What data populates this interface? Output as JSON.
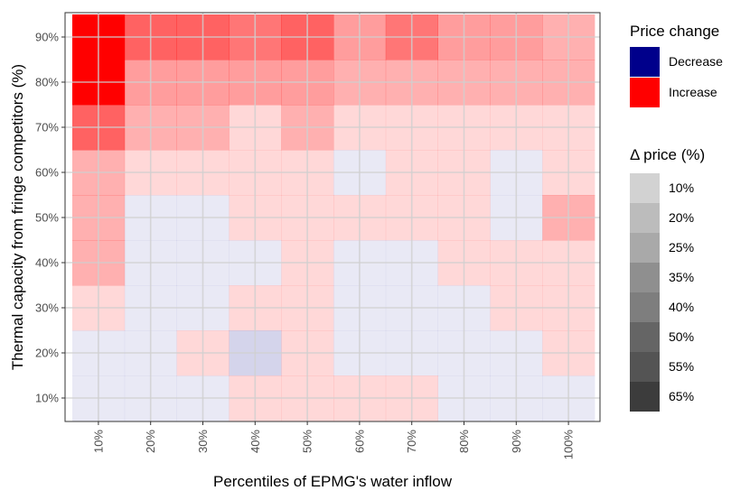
{
  "chart_data": {
    "type": "heatmap",
    "xlabel": "Percentiles of EPMG's water inflow",
    "ylabel": "Thermal capacity from fringe competitors (%)",
    "x_categories": [
      "10%",
      "20%",
      "30%",
      "40%",
      "50%",
      "60%",
      "70%",
      "80%",
      "90%",
      "100%"
    ],
    "y_categories": [
      "10%",
      "20%",
      "30%",
      "40%",
      "50%",
      "60%",
      "70%",
      "80%",
      "90%"
    ],
    "legend_direction": {
      "title": "Price change",
      "entries": [
        {
          "label": "Decrease",
          "color": "#00008B"
        },
        {
          "label": "Increase",
          "color": "#FF0000"
        }
      ]
    },
    "legend_magnitude": {
      "title": "Δ price (%)",
      "entries": [
        "10%",
        "20%",
        "25%",
        "35%",
        "40%",
        "50%",
        "55%",
        "65%"
      ]
    },
    "grid": true,
    "legend_position": "right",
    "colors": {
      "decrease": "#00008B",
      "increase": "#FF0000"
    },
    "cells": [
      {
        "x": "10%",
        "y": "90%",
        "dir": "Increase",
        "dp": 65
      },
      {
        "x": "20%",
        "y": "90%",
        "dir": "Increase",
        "dp": 40
      },
      {
        "x": "30%",
        "y": "90%",
        "dir": "Increase",
        "dp": 40
      },
      {
        "x": "40%",
        "y": "90%",
        "dir": "Increase",
        "dp": 35
      },
      {
        "x": "50%",
        "y": "90%",
        "dir": "Increase",
        "dp": 40
      },
      {
        "x": "60%",
        "y": "90%",
        "dir": "Increase",
        "dp": 25
      },
      {
        "x": "70%",
        "y": "90%",
        "dir": "Increase",
        "dp": 35
      },
      {
        "x": "80%",
        "y": "90%",
        "dir": "Increase",
        "dp": 25
      },
      {
        "x": "90%",
        "y": "90%",
        "dir": "Increase",
        "dp": 25
      },
      {
        "x": "100%",
        "y": "90%",
        "dir": "Increase",
        "dp": 20
      },
      {
        "x": "10%",
        "y": "80%",
        "dir": "Increase",
        "dp": 65
      },
      {
        "x": "20%",
        "y": "80%",
        "dir": "Increase",
        "dp": 25
      },
      {
        "x": "30%",
        "y": "80%",
        "dir": "Increase",
        "dp": 25
      },
      {
        "x": "40%",
        "y": "80%",
        "dir": "Increase",
        "dp": 25
      },
      {
        "x": "50%",
        "y": "80%",
        "dir": "Increase",
        "dp": 25
      },
      {
        "x": "60%",
        "y": "80%",
        "dir": "Increase",
        "dp": 20
      },
      {
        "x": "70%",
        "y": "80%",
        "dir": "Increase",
        "dp": 20
      },
      {
        "x": "80%",
        "y": "80%",
        "dir": "Increase",
        "dp": 20
      },
      {
        "x": "90%",
        "y": "80%",
        "dir": "Increase",
        "dp": 20
      },
      {
        "x": "100%",
        "y": "80%",
        "dir": "Increase",
        "dp": 20
      },
      {
        "x": "10%",
        "y": "70%",
        "dir": "Increase",
        "dp": 40
      },
      {
        "x": "20%",
        "y": "70%",
        "dir": "Increase",
        "dp": 20
      },
      {
        "x": "30%",
        "y": "70%",
        "dir": "Increase",
        "dp": 20
      },
      {
        "x": "40%",
        "y": "70%",
        "dir": "Increase",
        "dp": 10
      },
      {
        "x": "50%",
        "y": "70%",
        "dir": "Increase",
        "dp": 20
      },
      {
        "x": "60%",
        "y": "70%",
        "dir": "Increase",
        "dp": 10
      },
      {
        "x": "70%",
        "y": "70%",
        "dir": "Increase",
        "dp": 10
      },
      {
        "x": "80%",
        "y": "70%",
        "dir": "Increase",
        "dp": 10
      },
      {
        "x": "90%",
        "y": "70%",
        "dir": "Increase",
        "dp": 10
      },
      {
        "x": "100%",
        "y": "70%",
        "dir": "Increase",
        "dp": 10
      },
      {
        "x": "10%",
        "y": "60%",
        "dir": "Increase",
        "dp": 20
      },
      {
        "x": "20%",
        "y": "60%",
        "dir": "Increase",
        "dp": 10
      },
      {
        "x": "30%",
        "y": "60%",
        "dir": "Increase",
        "dp": 10
      },
      {
        "x": "40%",
        "y": "60%",
        "dir": "Increase",
        "dp": 10
      },
      {
        "x": "50%",
        "y": "60%",
        "dir": "Increase",
        "dp": 10
      },
      {
        "x": "60%",
        "y": "60%",
        "dir": "Decrease",
        "dp": 10
      },
      {
        "x": "70%",
        "y": "60%",
        "dir": "Increase",
        "dp": 10
      },
      {
        "x": "80%",
        "y": "60%",
        "dir": "Increase",
        "dp": 10
      },
      {
        "x": "90%",
        "y": "60%",
        "dir": "Decrease",
        "dp": 10
      },
      {
        "x": "100%",
        "y": "60%",
        "dir": "Increase",
        "dp": 10
      },
      {
        "x": "10%",
        "y": "50%",
        "dir": "Increase",
        "dp": 20
      },
      {
        "x": "20%",
        "y": "50%",
        "dir": "Decrease",
        "dp": 10
      },
      {
        "x": "30%",
        "y": "50%",
        "dir": "Decrease",
        "dp": 10
      },
      {
        "x": "40%",
        "y": "50%",
        "dir": "Increase",
        "dp": 10
      },
      {
        "x": "50%",
        "y": "50%",
        "dir": "Increase",
        "dp": 10
      },
      {
        "x": "60%",
        "y": "50%",
        "dir": "Increase",
        "dp": 10
      },
      {
        "x": "70%",
        "y": "50%",
        "dir": "Increase",
        "dp": 10
      },
      {
        "x": "80%",
        "y": "50%",
        "dir": "Increase",
        "dp": 10
      },
      {
        "x": "90%",
        "y": "50%",
        "dir": "Decrease",
        "dp": 10
      },
      {
        "x": "100%",
        "y": "50%",
        "dir": "Increase",
        "dp": 20
      },
      {
        "x": "10%",
        "y": "40%",
        "dir": "Increase",
        "dp": 20
      },
      {
        "x": "20%",
        "y": "40%",
        "dir": "Decrease",
        "dp": 10
      },
      {
        "x": "30%",
        "y": "40%",
        "dir": "Decrease",
        "dp": 10
      },
      {
        "x": "40%",
        "y": "40%",
        "dir": "Decrease",
        "dp": 10
      },
      {
        "x": "50%",
        "y": "40%",
        "dir": "Increase",
        "dp": 10
      },
      {
        "x": "60%",
        "y": "40%",
        "dir": "Decrease",
        "dp": 10
      },
      {
        "x": "70%",
        "y": "40%",
        "dir": "Decrease",
        "dp": 10
      },
      {
        "x": "80%",
        "y": "40%",
        "dir": "Increase",
        "dp": 10
      },
      {
        "x": "90%",
        "y": "40%",
        "dir": "Increase",
        "dp": 10
      },
      {
        "x": "100%",
        "y": "40%",
        "dir": "Increase",
        "dp": 10
      },
      {
        "x": "10%",
        "y": "30%",
        "dir": "Increase",
        "dp": 10
      },
      {
        "x": "20%",
        "y": "30%",
        "dir": "Decrease",
        "dp": 10
      },
      {
        "x": "30%",
        "y": "30%",
        "dir": "Decrease",
        "dp": 10
      },
      {
        "x": "40%",
        "y": "30%",
        "dir": "Increase",
        "dp": 10
      },
      {
        "x": "50%",
        "y": "30%",
        "dir": "Increase",
        "dp": 10
      },
      {
        "x": "60%",
        "y": "30%",
        "dir": "Decrease",
        "dp": 10
      },
      {
        "x": "70%",
        "y": "30%",
        "dir": "Decrease",
        "dp": 10
      },
      {
        "x": "80%",
        "y": "30%",
        "dir": "Decrease",
        "dp": 10
      },
      {
        "x": "90%",
        "y": "30%",
        "dir": "Increase",
        "dp": 10
      },
      {
        "x": "100%",
        "y": "30%",
        "dir": "Increase",
        "dp": 10
      },
      {
        "x": "10%",
        "y": "20%",
        "dir": "Decrease",
        "dp": 10
      },
      {
        "x": "20%",
        "y": "20%",
        "dir": "Decrease",
        "dp": 10
      },
      {
        "x": "30%",
        "y": "20%",
        "dir": "Increase",
        "dp": 10
      },
      {
        "x": "40%",
        "y": "20%",
        "dir": "Decrease",
        "dp": 20
      },
      {
        "x": "50%",
        "y": "20%",
        "dir": "Increase",
        "dp": 10
      },
      {
        "x": "60%",
        "y": "20%",
        "dir": "Decrease",
        "dp": 10
      },
      {
        "x": "70%",
        "y": "20%",
        "dir": "Decrease",
        "dp": 10
      },
      {
        "x": "80%",
        "y": "20%",
        "dir": "Decrease",
        "dp": 10
      },
      {
        "x": "90%",
        "y": "20%",
        "dir": "Decrease",
        "dp": 10
      },
      {
        "x": "100%",
        "y": "20%",
        "dir": "Increase",
        "dp": 10
      },
      {
        "x": "10%",
        "y": "10%",
        "dir": "Decrease",
        "dp": 10
      },
      {
        "x": "20%",
        "y": "10%",
        "dir": "Decrease",
        "dp": 10
      },
      {
        "x": "30%",
        "y": "10%",
        "dir": "Decrease",
        "dp": 10
      },
      {
        "x": "40%",
        "y": "10%",
        "dir": "Increase",
        "dp": 10
      },
      {
        "x": "50%",
        "y": "10%",
        "dir": "Increase",
        "dp": 10
      },
      {
        "x": "60%",
        "y": "10%",
        "dir": "Increase",
        "dp": 10
      },
      {
        "x": "70%",
        "y": "10%",
        "dir": "Increase",
        "dp": 10
      },
      {
        "x": "80%",
        "y": "10%",
        "dir": "Decrease",
        "dp": 10
      },
      {
        "x": "90%",
        "y": "10%",
        "dir": "Decrease",
        "dp": 10
      },
      {
        "x": "100%",
        "y": "10%",
        "dir": "Decrease",
        "dp": 10
      }
    ]
  }
}
